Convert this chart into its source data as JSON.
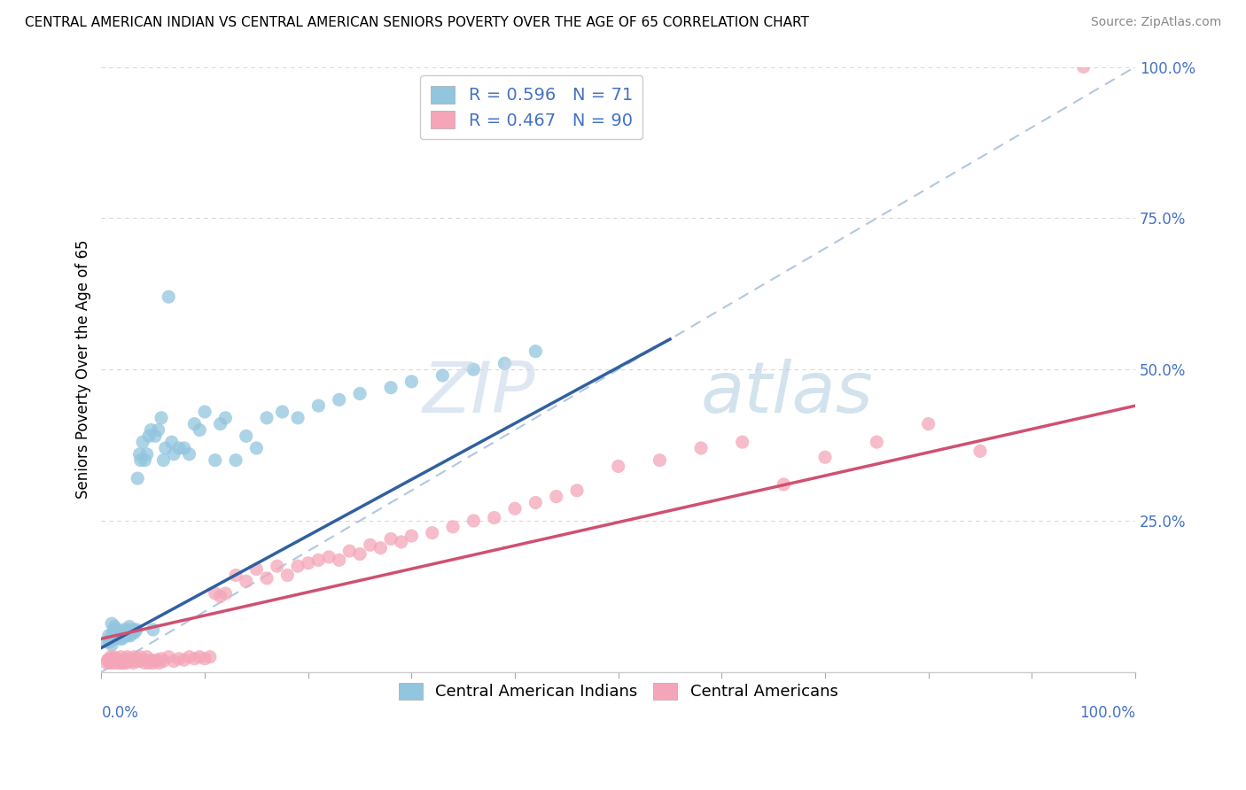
{
  "title": "CENTRAL AMERICAN INDIAN VS CENTRAL AMERICAN SENIORS POVERTY OVER THE AGE OF 65 CORRELATION CHART",
  "source": "Source: ZipAtlas.com",
  "ylabel": "Seniors Poverty Over the Age of 65",
  "series1_label": "Central American Indians",
  "series2_label": "Central Americans",
  "series1_R": 0.596,
  "series1_N": 71,
  "series2_R": 0.467,
  "series2_N": 90,
  "series1_color": "#92c5de",
  "series2_color": "#f4a6b8",
  "line1_color": "#3060a0",
  "line2_color": "#d05070",
  "diag_color": "#b0c8e0",
  "watermark_color": "#d0e4f0",
  "axis_label_color": "#4472c4",
  "background_color": "#ffffff",
  "grid_color": "#d8d8d8",
  "title_color": "#000000",
  "source_color": "#888888",
  "xlim": [
    0,
    1
  ],
  "ylim": [
    0,
    1
  ],
  "blue_line_x0": 0.0,
  "blue_line_x1": 0.55,
  "blue_line_y0": 0.04,
  "blue_line_y1": 0.55,
  "pink_line_x0": 0.0,
  "pink_line_x1": 1.0,
  "pink_line_y0": 0.055,
  "pink_line_y1": 0.44,
  "blue_x": [
    0.005,
    0.007,
    0.008,
    0.009,
    0.01,
    0.01,
    0.011,
    0.012,
    0.013,
    0.013,
    0.015,
    0.015,
    0.016,
    0.017,
    0.018,
    0.019,
    0.02,
    0.021,
    0.022,
    0.023,
    0.024,
    0.025,
    0.025,
    0.026,
    0.027,
    0.028,
    0.03,
    0.031,
    0.032,
    0.034,
    0.035,
    0.037,
    0.038,
    0.04,
    0.042,
    0.044,
    0.046,
    0.048,
    0.05,
    0.052,
    0.055,
    0.058,
    0.06,
    0.062,
    0.065,
    0.068,
    0.07,
    0.075,
    0.08,
    0.085,
    0.09,
    0.095,
    0.1,
    0.11,
    0.115,
    0.12,
    0.13,
    0.14,
    0.15,
    0.16,
    0.175,
    0.19,
    0.21,
    0.23,
    0.25,
    0.28,
    0.3,
    0.33,
    0.36,
    0.39,
    0.42
  ],
  "blue_y": [
    0.05,
    0.06,
    0.05,
    0.055,
    0.045,
    0.08,
    0.065,
    0.07,
    0.055,
    0.075,
    0.06,
    0.07,
    0.06,
    0.065,
    0.055,
    0.065,
    0.055,
    0.065,
    0.07,
    0.06,
    0.065,
    0.07,
    0.06,
    0.065,
    0.075,
    0.06,
    0.065,
    0.07,
    0.065,
    0.07,
    0.32,
    0.36,
    0.35,
    0.38,
    0.35,
    0.36,
    0.39,
    0.4,
    0.07,
    0.39,
    0.4,
    0.42,
    0.35,
    0.37,
    0.62,
    0.38,
    0.36,
    0.37,
    0.37,
    0.36,
    0.41,
    0.4,
    0.43,
    0.35,
    0.41,
    0.42,
    0.35,
    0.39,
    0.37,
    0.42,
    0.43,
    0.42,
    0.44,
    0.45,
    0.46,
    0.47,
    0.48,
    0.49,
    0.5,
    0.51,
    0.53
  ],
  "pink_x": [
    0.005,
    0.006,
    0.007,
    0.008,
    0.009,
    0.01,
    0.011,
    0.012,
    0.013,
    0.014,
    0.015,
    0.016,
    0.017,
    0.018,
    0.019,
    0.02,
    0.021,
    0.022,
    0.023,
    0.024,
    0.025,
    0.026,
    0.027,
    0.028,
    0.03,
    0.031,
    0.032,
    0.034,
    0.035,
    0.037,
    0.038,
    0.04,
    0.042,
    0.044,
    0.046,
    0.048,
    0.05,
    0.052,
    0.054,
    0.056,
    0.058,
    0.06,
    0.065,
    0.07,
    0.075,
    0.08,
    0.085,
    0.09,
    0.095,
    0.1,
    0.105,
    0.11,
    0.115,
    0.12,
    0.13,
    0.14,
    0.15,
    0.16,
    0.17,
    0.18,
    0.19,
    0.2,
    0.21,
    0.22,
    0.23,
    0.24,
    0.25,
    0.26,
    0.27,
    0.28,
    0.29,
    0.3,
    0.32,
    0.34,
    0.36,
    0.38,
    0.4,
    0.42,
    0.44,
    0.46,
    0.5,
    0.54,
    0.58,
    0.62,
    0.66,
    0.7,
    0.75,
    0.8,
    0.85,
    0.95
  ],
  "pink_y": [
    0.015,
    0.02,
    0.02,
    0.015,
    0.025,
    0.02,
    0.015,
    0.025,
    0.018,
    0.022,
    0.015,
    0.02,
    0.02,
    0.015,
    0.025,
    0.015,
    0.02,
    0.015,
    0.02,
    0.015,
    0.025,
    0.018,
    0.022,
    0.018,
    0.02,
    0.015,
    0.025,
    0.018,
    0.022,
    0.018,
    0.025,
    0.02,
    0.015,
    0.025,
    0.015,
    0.02,
    0.015,
    0.018,
    0.02,
    0.015,
    0.022,
    0.018,
    0.025,
    0.018,
    0.022,
    0.02,
    0.025,
    0.022,
    0.025,
    0.022,
    0.025,
    0.13,
    0.125,
    0.13,
    0.16,
    0.15,
    0.17,
    0.155,
    0.175,
    0.16,
    0.175,
    0.18,
    0.185,
    0.19,
    0.185,
    0.2,
    0.195,
    0.21,
    0.205,
    0.22,
    0.215,
    0.225,
    0.23,
    0.24,
    0.25,
    0.255,
    0.27,
    0.28,
    0.29,
    0.3,
    0.34,
    0.35,
    0.37,
    0.38,
    0.31,
    0.355,
    0.38,
    0.41,
    0.365,
    1.0
  ]
}
